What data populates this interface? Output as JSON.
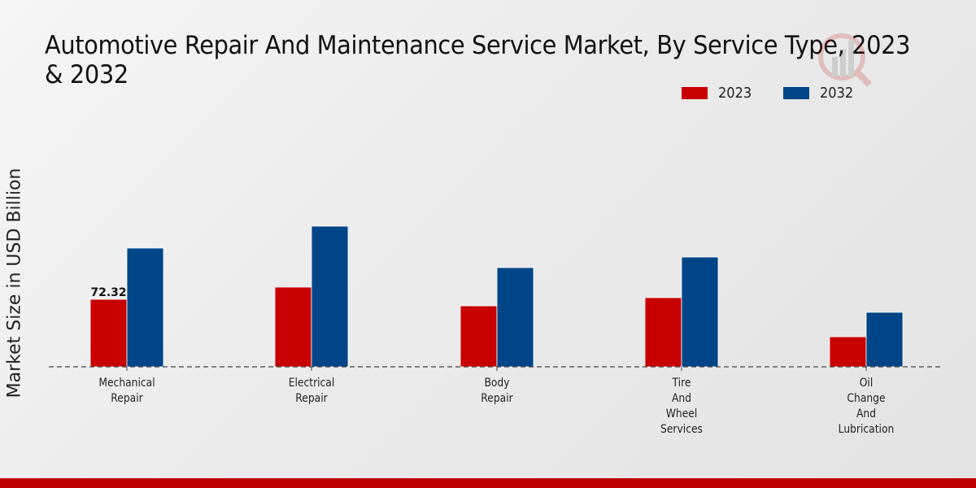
{
  "chart_data": {
    "type": "bar",
    "title": "Automotive Repair And Maintenance Service Market, By Service Type, 2023 & 2032",
    "xlabel": "",
    "ylabel": "Market Size in USD Billion",
    "categories": [
      [
        "Mechanical",
        "Repair"
      ],
      [
        "Electrical",
        "Repair"
      ],
      [
        "Body",
        "Repair"
      ],
      [
        "Tire",
        "And",
        "Wheel",
        "Services"
      ],
      [
        "Oil",
        "Change",
        "And",
        "Lubrication"
      ]
    ],
    "series": [
      {
        "name": "2023",
        "color": "#c80000",
        "values": [
          72.32,
          85.4,
          65.3,
          74.1,
          32.2
        ]
      },
      {
        "name": "2032",
        "color": "#004587",
        "values": [
          127.2,
          150.7,
          106.3,
          117.6,
          58.4
        ]
      }
    ],
    "data_labels": [
      {
        "series": 0,
        "index": 0,
        "text": "72.32"
      }
    ],
    "ylim": [
      0,
      170
    ],
    "grid": false,
    "legend_position": "top-right"
  },
  "footer": {
    "accent_color": "#c00000"
  }
}
